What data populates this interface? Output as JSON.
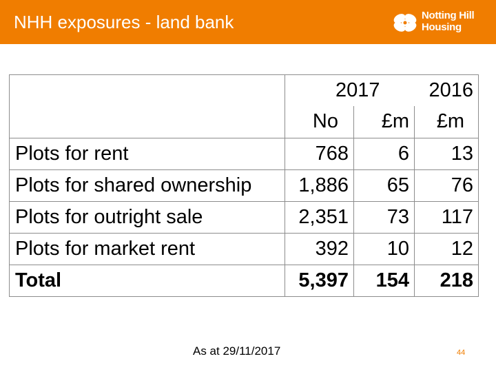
{
  "header": {
    "title": "NHH exposures - land bank",
    "logo_line1": "Notting Hill",
    "logo_line2": "Housing",
    "accent": "#f07d00"
  },
  "table": {
    "year_2017": "2017",
    "year_2016": "2016",
    "unit_no": "No",
    "unit_m_2017": "£m",
    "unit_m_2016": "£m",
    "rows": [
      {
        "label": "Plots for rent",
        "no": "768",
        "m2017": "6",
        "m2016": "13"
      },
      {
        "label": "Plots for shared ownership",
        "no": "1,886",
        "m2017": "65",
        "m2016": "76"
      },
      {
        "label": "Plots for outright sale",
        "no": "2,351",
        "m2017": "73",
        "m2016": "117"
      },
      {
        "label": "Plots for market rent",
        "no": "392",
        "m2017": "10",
        "m2016": "12"
      }
    ],
    "total": {
      "label": "Total",
      "no": "5,397",
      "m2017": "154",
      "m2016": "218"
    }
  },
  "footer": {
    "date": "As at 29/11/2017",
    "page": "44"
  }
}
